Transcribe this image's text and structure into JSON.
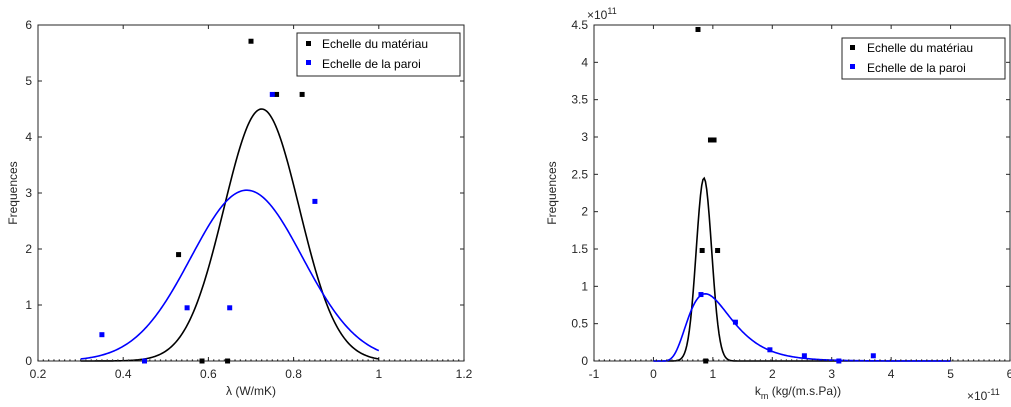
{
  "chart_data": [
    {
      "type": "scatter",
      "xlabel": "λ (W/mK)",
      "ylabel": "Frequences",
      "xlim": [
        0.2,
        1.2
      ],
      "ylim": [
        0,
        6
      ],
      "xticks": [
        "0.2",
        "0.4",
        "0.6",
        "0.8",
        "1",
        "1.2"
      ],
      "yticks": [
        "0",
        "1",
        "2",
        "3",
        "4",
        "5",
        "6"
      ],
      "grid": false,
      "legend_position": "top-right",
      "colors": {
        "material": "#000000",
        "wall": "#0000ff"
      },
      "series": [
        {
          "name": "Echelle du matériau",
          "color": "#000000",
          "points": [
            {
              "x": 0.45,
              "y": 0.0
            },
            {
              "x": 0.53,
              "y": 1.9
            },
            {
              "x": 0.585,
              "y": 0.0
            },
            {
              "x": 0.645,
              "y": 0.0
            },
            {
              "x": 0.7,
              "y": 5.71
            },
            {
              "x": 0.76,
              "y": 4.76
            },
            {
              "x": 0.82,
              "y": 4.76
            }
          ],
          "curve": {
            "kind": "normal",
            "mean": 0.725,
            "sigma": 0.0885,
            "peak": 4.5,
            "xrange": [
              0.3,
              1.0
            ]
          }
        },
        {
          "name": "Echelle de la paroi",
          "color": "#0000ff",
          "points": [
            {
              "x": 0.35,
              "y": 0.47
            },
            {
              "x": 0.45,
              "y": 0.0
            },
            {
              "x": 0.55,
              "y": 0.95
            },
            {
              "x": 0.65,
              "y": 0.95
            },
            {
              "x": 0.75,
              "y": 4.76
            },
            {
              "x": 0.85,
              "y": 2.85
            }
          ],
          "curve": {
            "kind": "normal",
            "mean": 0.69,
            "sigma": 0.131,
            "peak": 3.05,
            "xrange": [
              0.3,
              1.0
            ]
          }
        }
      ]
    },
    {
      "type": "scatter",
      "xlabel": "k",
      "xlabel_sub": "m",
      "xlabel_rest": " (kg/(m.s.Pa))",
      "ylabel": "Frequences",
      "x_exponent": "×10",
      "x_exponent_power": "-11",
      "y_exponent": "×10",
      "y_exponent_power": "11",
      "xlim": [
        -1,
        6
      ],
      "ylim": [
        0,
        4.5
      ],
      "xticks": [
        "-1",
        "0",
        "1",
        "2",
        "3",
        "4",
        "5",
        "6"
      ],
      "yticks": [
        "0",
        "0.5",
        "1",
        "1.5",
        "2",
        "2.5",
        "3",
        "3.5",
        "4",
        "4.5"
      ],
      "grid": false,
      "legend_position": "top-right",
      "series": [
        {
          "name": "Echelle du matériau",
          "color": "#000000",
          "points": [
            {
              "x": 0.75,
              "y": 4.44
            },
            {
              "x": 0.82,
              "y": 1.48
            },
            {
              "x": 0.88,
              "y": 0.0
            },
            {
              "x": 0.96,
              "y": 2.96
            },
            {
              "x": 1.02,
              "y": 2.96
            },
            {
              "x": 1.08,
              "y": 1.48
            }
          ],
          "curve": {
            "kind": "normal",
            "mean": 0.85,
            "sigma": 0.13,
            "peak": 2.45,
            "xrange": [
              0.0,
              5.0
            ]
          }
        },
        {
          "name": "Echelle de la paroi",
          "color": "#0000ff",
          "points": [
            {
              "x": 0.8,
              "y": 0.89
            },
            {
              "x": 1.38,
              "y": 0.52
            },
            {
              "x": 1.96,
              "y": 0.15
            },
            {
              "x": 2.54,
              "y": 0.07
            },
            {
              "x": 3.12,
              "y": 0.0
            },
            {
              "x": 3.7,
              "y": 0.07
            }
          ],
          "curve": {
            "kind": "lognormal",
            "mu": 0.04,
            "s": 0.42,
            "peak": 0.9,
            "xrange": [
              0.0,
              5.0
            ]
          }
        }
      ]
    }
  ]
}
